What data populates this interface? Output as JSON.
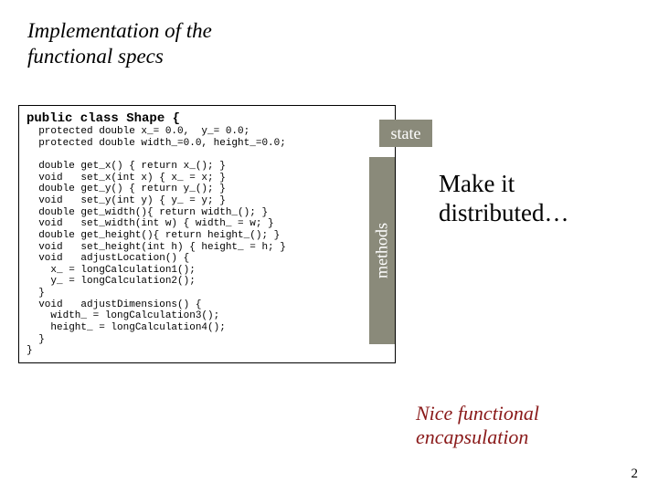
{
  "title_line1": "Implementation of the",
  "title_line2": "functional specs",
  "code": {
    "class_decl": "public class Shape {",
    "state_lines": "  protected double x_= 0.0,  y_= 0.0;\n  protected double width_=0.0, height_=0.0;",
    "method_lines": "  double get_x() { return x_(); }\n  void   set_x(int x) { x_ = x; }\n  double get_y() { return y_(); }\n  void   set_y(int y) { y_ = y; }\n  double get_width(){ return width_(); }\n  void   set_width(int w) { width_ = w; }\n  double get_height(){ return height_(); }\n  void   set_height(int h) { height_ = h; }\n  void   adjustLocation() {\n    x_ = longCalculation1();\n    y_ = longCalculation2();\n  }\n  void   adjustDimensions() {\n    width_ = longCalculation3();\n    height_ = longCalculation4();\n  }\n}"
  },
  "labels": {
    "state": "state",
    "methods": "methods"
  },
  "callout_line1": "Make it",
  "callout_line2": "distributed…",
  "caption_line1": "Nice functional",
  "caption_line2": "encapsulation",
  "page_number": "2",
  "colors": {
    "box_bg": "#8a8a7a",
    "box_text": "#ffffff",
    "caption_color": "#8a1a1a",
    "border": "#000000"
  }
}
